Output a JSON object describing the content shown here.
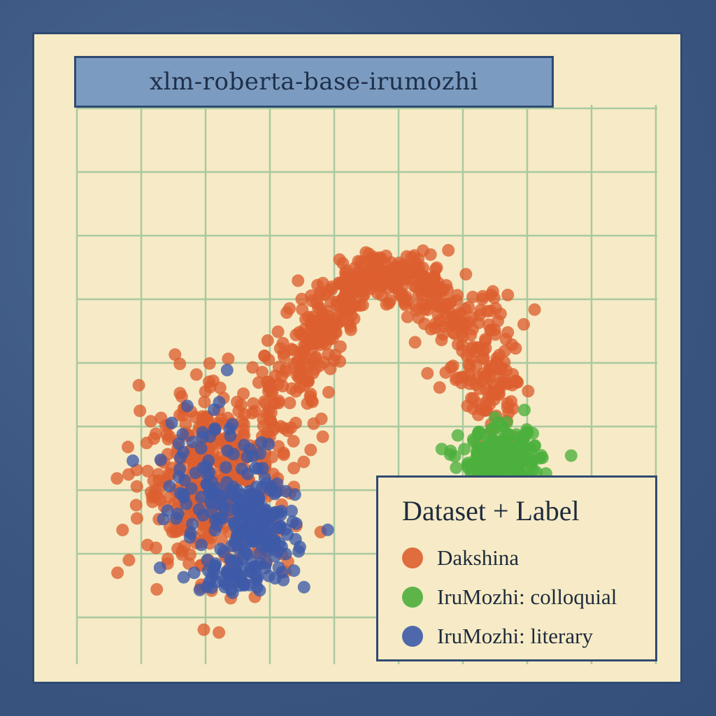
{
  "colors": {
    "frame": "#3f5a85",
    "paper": "#f6ebc6",
    "grid": "#a9c9a0",
    "border": "#2f4a72",
    "title_box": "#7b9cc0"
  },
  "chart_data": {
    "type": "scatter",
    "title": "xlm-roberta-base-irumozhi",
    "xlabel": "",
    "ylabel": "",
    "grid": true,
    "legend_placement": "bottom-right",
    "legend_title": "Dataset + Label",
    "series": [
      {
        "name": "Dakshina",
        "color": "#dd5f2f",
        "clusters": [
          {
            "shape": "arc",
            "from": [
              3.4,
              4.6
            ],
            "via": [
              5.0,
              10.2
            ],
            "to": [
              7.3,
              5.6
            ],
            "count": 520,
            "spread": 0.32
          },
          {
            "shape": "blob",
            "center": [
              2.4,
              3.6
            ],
            "radius": [
              1.15,
              1.6
            ],
            "count": 430
          },
          {
            "shape": "blob",
            "center": [
              7.1,
              5.4
            ],
            "radius": [
              0.45,
              0.7
            ],
            "count": 60
          },
          {
            "shape": "points",
            "points": [
              [
                0.7,
                1.8
              ],
              [
                4.2,
                2.6
              ],
              [
                1.6,
                2.7
              ],
              [
                2.7,
                1.6
              ]
            ]
          }
        ]
      },
      {
        "name": "IruMozhi: colloquial",
        "color": "#4caf3c",
        "clusters": [
          {
            "shape": "blob",
            "center": [
              7.3,
              4.0
            ],
            "radius": [
              0.62,
              0.55
            ],
            "count": 240
          },
          {
            "shape": "points",
            "points": [
              [
                7.85,
                3.4
              ]
            ]
          }
        ]
      },
      {
        "name": "IruMozhi: literary",
        "color": "#3d5aa8",
        "clusters": [
          {
            "shape": "blob",
            "center": [
              3.1,
              2.6
            ],
            "radius": [
              0.62,
              0.95
            ],
            "count": 160
          },
          {
            "shape": "blob",
            "center": [
              2.4,
              3.8
            ],
            "radius": [
              0.85,
              1.4
            ],
            "count": 90
          },
          {
            "shape": "blob",
            "center": [
              2.6,
              1.7
            ],
            "radius": [
              0.7,
              0.3
            ],
            "count": 40
          }
        ]
      }
    ]
  }
}
